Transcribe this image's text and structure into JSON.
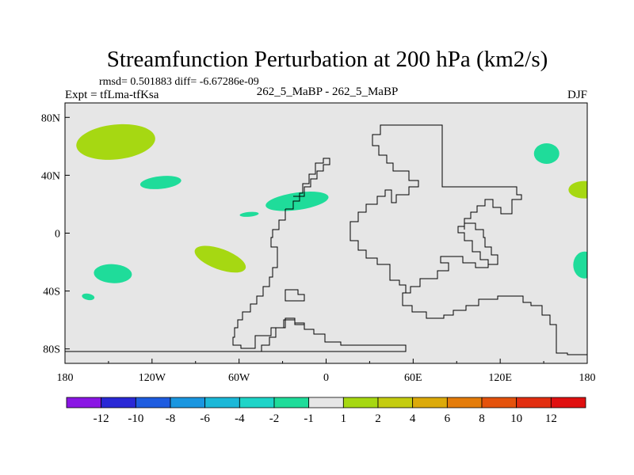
{
  "chart_data": {
    "type": "contour_map",
    "title": "Streamfunction Perturbation at 200 hPa (km2/s)",
    "stats": "rmsd= 0.501883 diff= -6.67286e-09",
    "subtitle": "262_5_MaBP - 262_5_MaBP",
    "left_label": "Expt = tfLma-tfKsa",
    "right_label": "DJF",
    "x_ticks": [
      "180",
      "120W",
      "60W",
      "0",
      "60E",
      "120E",
      "180"
    ],
    "x_tick_values": [
      -180,
      -120,
      -60,
      0,
      60,
      120,
      180
    ],
    "y_ticks": [
      "80N",
      "40N",
      "0",
      "40S",
      "80S"
    ],
    "y_tick_values": [
      80,
      40,
      0,
      -40,
      -80
    ],
    "xlim": [
      -180,
      180
    ],
    "ylim": [
      -90,
      90
    ],
    "colorbar": {
      "labels": [
        "-12",
        "-10",
        "-8",
        "-6",
        "-4",
        "-2",
        "-1",
        "1",
        "2",
        "4",
        "6",
        "8",
        "10",
        "12"
      ],
      "colors": [
        "#8a16e4",
        "#2a28d6",
        "#1e5ce0",
        "#1a96e0",
        "#1bb8d8",
        "#1ed4c8",
        "#1fdc9a",
        "#e6e6e6",
        "#a6d812",
        "#c4cc10",
        "#dcaa0a",
        "#e47c0a",
        "#e4520c",
        "#e22e10",
        "#e01010"
      ]
    },
    "features": [
      {
        "name": "positive-anomaly-north-pacific",
        "level": "1 to 2",
        "color": "#a6d812",
        "lon": -145,
        "lat": 63
      },
      {
        "name": "negative-anomaly-northeast-pacific",
        "level": "-2 to -1",
        "color": "#1fdc9a",
        "lon": -114,
        "lat": 35
      },
      {
        "name": "negative-anomaly-north-atlantic",
        "level": "-2 to -1",
        "color": "#1fdc9a",
        "lon": -20,
        "lat": 22
      },
      {
        "name": "negative-anomaly-central-atlantic",
        "level": "-2 to -1",
        "color": "#1fdc9a",
        "lon": -53,
        "lat": 13
      },
      {
        "name": "positive-anomaly-south-america",
        "level": "1 to 2",
        "color": "#a6d812",
        "lon": -73,
        "lat": -18
      },
      {
        "name": "negative-anomaly-south-pacific",
        "level": "-2 to -1",
        "color": "#1fdc9a",
        "lon": -147,
        "lat": -28
      },
      {
        "name": "negative-anomaly-south-pacific-small",
        "level": "-2 to -1",
        "color": "#1fdc9a",
        "lon": -164,
        "lat": -44
      },
      {
        "name": "positive-anomaly-dateline-north",
        "level": "1 to 2",
        "color": "#a6d812",
        "lon": 178,
        "lat": 30
      },
      {
        "name": "negative-anomaly-dateline-south",
        "level": "-2 to -1",
        "color": "#1fdc9a",
        "lon": 178,
        "lat": -22
      },
      {
        "name": "negative-anomaly-west-pacific",
        "level": "-2 to -1",
        "color": "#1fdc9a",
        "lon": 152,
        "lat": 55
      }
    ]
  }
}
